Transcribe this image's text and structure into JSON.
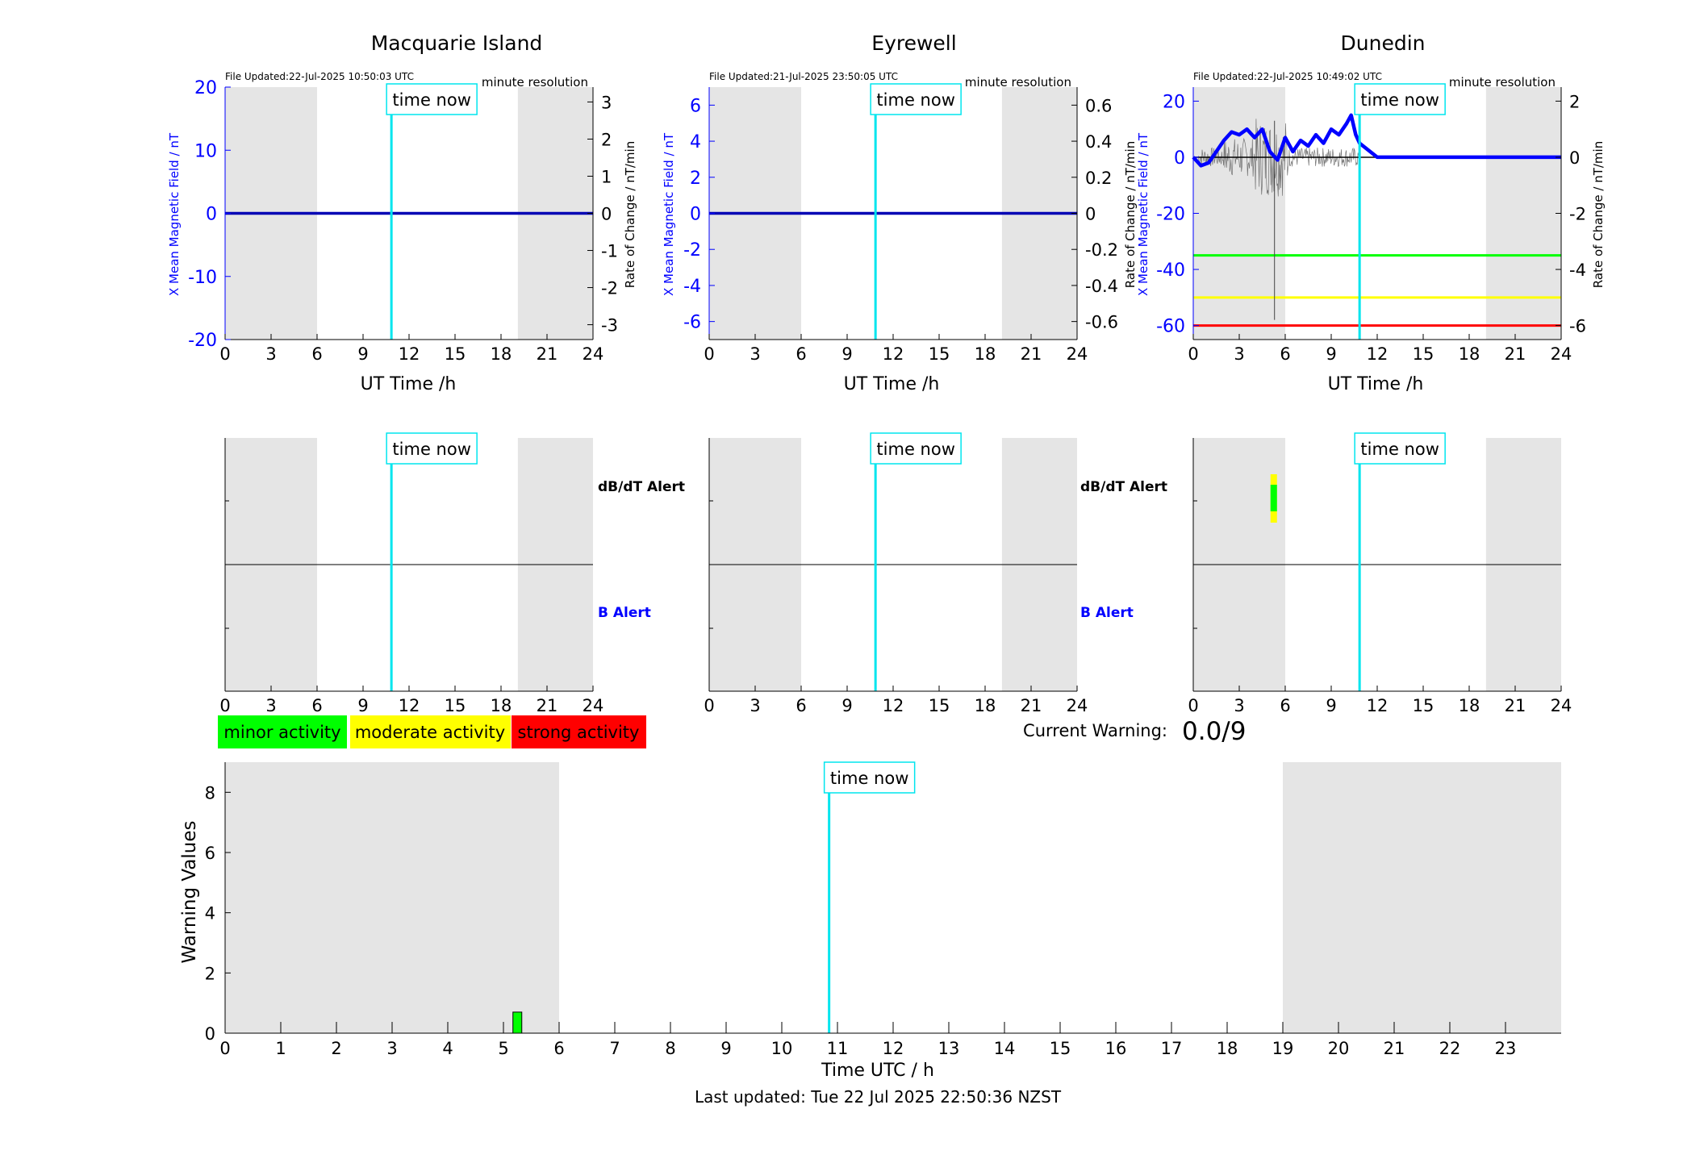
{
  "colors": {
    "cyan": "#00e5ee",
    "blue": "#0000ff",
    "navy": "#0000b4",
    "green": "#00ff00",
    "yellow": "#ffff00",
    "red": "#ff0000",
    "night_shade": "#e5e5e5"
  },
  "common": {
    "time_now_label": "time now",
    "resolution_label": "minute resolution",
    "ut_time_label": "UT Time /h",
    "x_field_label": "X Mean Magnetic Field / nT",
    "rate_label": "Rate of Change / nT/min",
    "dbdt_alert_label": "dB/dT Alert",
    "b_alert_label": "B Alert"
  },
  "stations": [
    {
      "name": "Macquarie Island",
      "file_updated": "File Updated:22-Jul-2025 10:50:03 UTC"
    },
    {
      "name": "Eyrewell",
      "file_updated": "File Updated:21-Jul-2025 23:50:05 UTC"
    },
    {
      "name": "Dunedin",
      "file_updated": "File Updated:22-Jul-2025 10:49:02 UTC"
    }
  ],
  "legend": {
    "minor": "minor activity",
    "moderate": "moderate activity",
    "strong": "strong activity"
  },
  "current_warning": {
    "label": "Current Warning:",
    "value": "0.0/9"
  },
  "footer": {
    "last_updated": "Last updated: Tue 22 Jul 2025 22:50:36 NZST"
  },
  "chart_data": [
    {
      "type": "line",
      "station": "Macquarie Island",
      "xlabel": "UT Time /h",
      "ylabel": "X Mean Magnetic Field / nT",
      "y2label": "Rate of Change / nT/min",
      "xlim": [
        0,
        24
      ],
      "xticks": [
        0,
        3,
        6,
        9,
        12,
        15,
        18,
        21,
        24
      ],
      "ylim": [
        -20,
        20
      ],
      "yticks": [
        -20,
        -10,
        0,
        10,
        20
      ],
      "y2lim": [
        -3.4,
        3.4
      ],
      "y2ticks": [
        -3,
        -2,
        -1,
        0,
        1,
        2,
        3
      ],
      "night_bands": [
        [
          0,
          6
        ],
        [
          19.1,
          24
        ]
      ],
      "time_now": 10.85,
      "series": [
        {
          "x": [
            0,
            24
          ],
          "y": [
            0,
            0
          ]
        }
      ]
    },
    {
      "type": "line",
      "station": "Eyrewell",
      "xlabel": "UT Time /h",
      "ylabel": "X Mean Magnetic Field / nT",
      "y2label": "Rate of Change / nT/min",
      "xlim": [
        0,
        24
      ],
      "xticks": [
        0,
        3,
        6,
        9,
        12,
        15,
        18,
        21,
        24
      ],
      "ylim": [
        -7,
        7
      ],
      "yticks": [
        -6,
        -4,
        -2,
        0,
        2,
        4,
        6
      ],
      "y2lim": [
        -0.7,
        0.7
      ],
      "y2ticks": [
        -0.6,
        -0.4,
        -0.2,
        0,
        0.2,
        0.4,
        0.6
      ],
      "night_bands": [
        [
          0,
          6
        ],
        [
          19.1,
          24
        ]
      ],
      "time_now": 10.85,
      "series": [
        {
          "x": [
            0,
            24
          ],
          "y": [
            0,
            0
          ]
        }
      ]
    },
    {
      "type": "line",
      "station": "Dunedin",
      "xlabel": "UT Time /h",
      "ylabel": "X Mean Magnetic Field / nT",
      "y2label": "Rate of Change / nT/min",
      "xlim": [
        0,
        24
      ],
      "xticks": [
        0,
        3,
        6,
        9,
        12,
        15,
        18,
        21,
        24
      ],
      "ylim": [
        -65,
        25
      ],
      "yticks": [
        -60,
        -40,
        -20,
        0,
        20
      ],
      "y2lim": [
        -6.5,
        2.5
      ],
      "y2ticks": [
        -6,
        -4,
        -2,
        0,
        2
      ],
      "night_bands": [
        [
          0,
          6
        ],
        [
          19.1,
          24
        ]
      ],
      "time_now": 10.85,
      "threshold_lines": [
        {
          "y": -35,
          "color": "#00ff00"
        },
        {
          "y": -50,
          "color": "#ffff00"
        },
        {
          "y": -60,
          "color": "#ff0000"
        }
      ],
      "series": [
        {
          "x": [
            0,
            0.5,
            1,
            1.5,
            2,
            2.5,
            3,
            3.5,
            4,
            4.5,
            5,
            5.5,
            6,
            6.5,
            7,
            7.5,
            8,
            8.5,
            9,
            9.5,
            10,
            10.3,
            10.6,
            10.85,
            12,
            15,
            18,
            21,
            24
          ],
          "y": [
            0,
            -3,
            -2,
            2,
            6,
            9,
            8,
            10,
            7,
            10,
            2,
            -1,
            7,
            2,
            6,
            4,
            8,
            5,
            10,
            8,
            12,
            15,
            8,
            5,
            0,
            0,
            0,
            0,
            0
          ]
        }
      ]
    },
    {
      "type": "heatmap",
      "station": "Macquarie Island",
      "xlim": [
        0,
        24
      ],
      "xticks": [
        0,
        3,
        6,
        9,
        12,
        15,
        18,
        21,
        24
      ],
      "rows": [
        "dB/dT Alert",
        "B Alert"
      ],
      "night_bands": [
        [
          0,
          6
        ],
        [
          19.1,
          24
        ]
      ],
      "time_now": 10.85,
      "alerts": []
    },
    {
      "type": "heatmap",
      "station": "Eyrewell",
      "xlim": [
        0,
        24
      ],
      "xticks": [
        0,
        3,
        6,
        9,
        12,
        15,
        18,
        21,
        24
      ],
      "rows": [
        "dB/dT Alert",
        "B Alert"
      ],
      "night_bands": [
        [
          0,
          6
        ],
        [
          19.1,
          24
        ]
      ],
      "time_now": 10.85,
      "alerts": []
    },
    {
      "type": "heatmap",
      "station": "Dunedin",
      "xlim": [
        0,
        24
      ],
      "xticks": [
        0,
        3,
        6,
        9,
        12,
        15,
        18,
        21,
        24
      ],
      "rows": [
        "dB/dT Alert",
        "B Alert"
      ],
      "night_bands": [
        [
          0,
          6
        ],
        [
          19.1,
          24
        ]
      ],
      "time_now": 10.85,
      "alerts": [
        {
          "row": "dB/dT Alert",
          "x": 5.25,
          "level": "minor"
        }
      ]
    },
    {
      "type": "bar",
      "xlabel": "Time UTC / h",
      "ylabel": "Warning Values",
      "xlim": [
        0,
        24
      ],
      "xticks": [
        0,
        1,
        2,
        3,
        4,
        5,
        6,
        7,
        8,
        9,
        10,
        11,
        12,
        13,
        14,
        15,
        16,
        17,
        18,
        19,
        20,
        21,
        22,
        23
      ],
      "ylim": [
        0,
        9
      ],
      "yticks": [
        0,
        2,
        4,
        6,
        8
      ],
      "night_bands": [
        [
          0,
          6
        ],
        [
          19,
          24
        ]
      ],
      "time_now": 10.85,
      "bars": [
        {
          "x": 5.25,
          "value": 0.7,
          "level": "minor"
        }
      ]
    }
  ]
}
